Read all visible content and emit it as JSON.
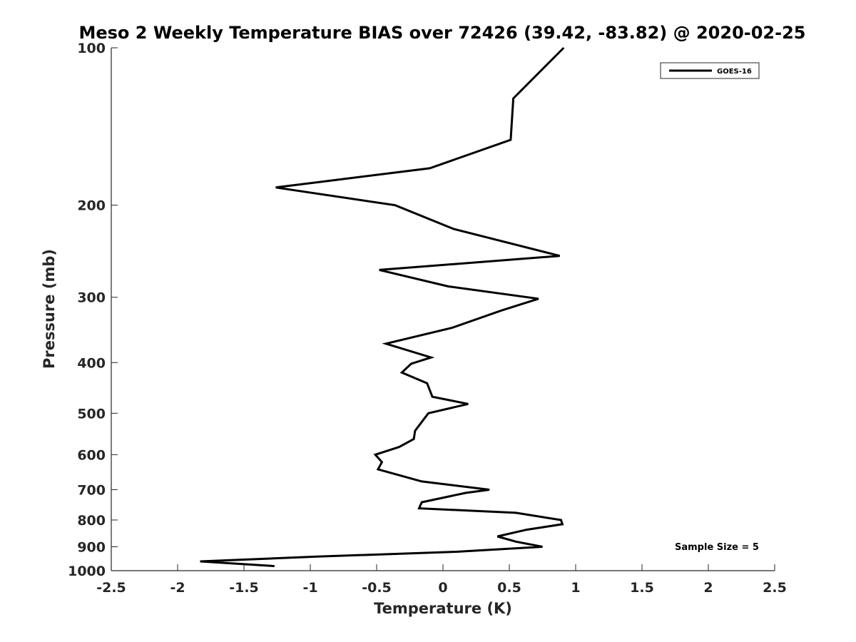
{
  "chart_data": {
    "type": "line",
    "title": "Meso 2 Weekly Temperature BIAS over 72426 (39.42, -83.82) @ 2020-02-25",
    "xlabel": "Temperature (K)",
    "ylabel": "Pressure (mb)",
    "xlim": [
      -2.5,
      2.5
    ],
    "ylim": [
      100,
      1000
    ],
    "yscale": "log",
    "yreversed": true,
    "grid": false,
    "legend_position": "top-right",
    "xticks": [
      "-2.5",
      "-2",
      "-1.5",
      "-1",
      "-0.5",
      "0",
      "0.5",
      "1",
      "1.5",
      "2",
      "2.5"
    ],
    "yticks": [
      "100",
      "200",
      "300",
      "400",
      "500",
      "600",
      "700",
      "800",
      "900",
      "1000"
    ],
    "annotation": "Sample Size = 5",
    "series": [
      {
        "name": "GOES-16",
        "color": "#000000",
        "points": [
          {
            "x": 0.91,
            "p": 100
          },
          {
            "x": 0.53,
            "p": 125
          },
          {
            "x": 0.51,
            "p": 150
          },
          {
            "x": -0.1,
            "p": 170
          },
          {
            "x": -1.26,
            "p": 185
          },
          {
            "x": -0.36,
            "p": 200
          },
          {
            "x": 0.08,
            "p": 222
          },
          {
            "x": 0.88,
            "p": 250
          },
          {
            "x": -0.48,
            "p": 266
          },
          {
            "x": 0.04,
            "p": 286
          },
          {
            "x": 0.72,
            "p": 302
          },
          {
            "x": 0.44,
            "p": 318
          },
          {
            "x": 0.07,
            "p": 343
          },
          {
            "x": -0.43,
            "p": 368
          },
          {
            "x": -0.09,
            "p": 391
          },
          {
            "x": -0.24,
            "p": 402
          },
          {
            "x": -0.31,
            "p": 418
          },
          {
            "x": -0.12,
            "p": 438
          },
          {
            "x": -0.08,
            "p": 465
          },
          {
            "x": 0.19,
            "p": 480
          },
          {
            "x": -0.11,
            "p": 500
          },
          {
            "x": -0.21,
            "p": 540
          },
          {
            "x": -0.22,
            "p": 560
          },
          {
            "x": -0.33,
            "p": 580
          },
          {
            "x": -0.51,
            "p": 600
          },
          {
            "x": -0.46,
            "p": 620
          },
          {
            "x": -0.49,
            "p": 640
          },
          {
            "x": -0.16,
            "p": 675
          },
          {
            "x": 0.35,
            "p": 700
          },
          {
            "x": 0.17,
            "p": 710
          },
          {
            "x": -0.16,
            "p": 740
          },
          {
            "x": -0.18,
            "p": 760
          },
          {
            "x": 0.55,
            "p": 775
          },
          {
            "x": 0.89,
            "p": 800
          },
          {
            "x": 0.9,
            "p": 815
          },
          {
            "x": 0.63,
            "p": 835
          },
          {
            "x": 0.41,
            "p": 860
          },
          {
            "x": 0.55,
            "p": 880
          },
          {
            "x": 0.75,
            "p": 900
          },
          {
            "x": 0.1,
            "p": 920
          },
          {
            "x": -0.95,
            "p": 940
          },
          {
            "x": -1.83,
            "p": 960
          },
          {
            "x": -1.27,
            "p": 980
          }
        ]
      }
    ]
  }
}
